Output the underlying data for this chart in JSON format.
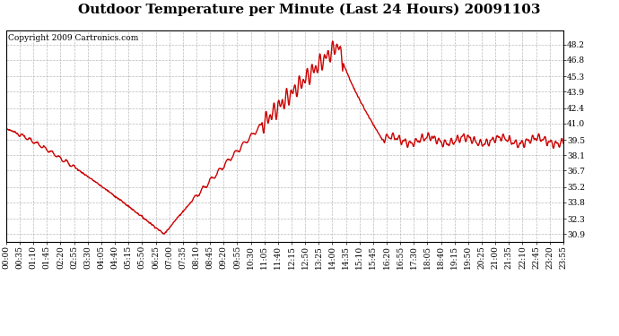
{
  "title": "Outdoor Temperature per Minute (Last 24 Hours) 20091103",
  "copyright_text": "Copyright 2009 Cartronics.com",
  "line_color": "#cc0000",
  "background_color": "#ffffff",
  "grid_color": "#aaaaaa",
  "y_ticks": [
    30.9,
    32.3,
    33.8,
    35.2,
    36.7,
    38.1,
    39.5,
    41.0,
    42.4,
    43.9,
    45.3,
    46.8,
    48.2
  ],
  "y_min": 30.2,
  "y_max": 49.5,
  "x_tick_labels": [
    "00:00",
    "00:35",
    "01:10",
    "01:45",
    "02:20",
    "02:55",
    "03:30",
    "04:05",
    "04:40",
    "05:15",
    "05:50",
    "06:25",
    "07:00",
    "07:35",
    "08:10",
    "08:45",
    "09:20",
    "09:55",
    "10:30",
    "11:05",
    "11:40",
    "12:15",
    "12:50",
    "13:25",
    "14:00",
    "14:35",
    "15:10",
    "15:45",
    "16:20",
    "16:55",
    "17:30",
    "18:05",
    "18:40",
    "19:15",
    "19:50",
    "20:25",
    "21:00",
    "21:35",
    "22:10",
    "22:45",
    "23:20",
    "23:55"
  ],
  "num_minutes": 1440,
  "line_width": 1.0,
  "title_fontsize": 11,
  "tick_fontsize": 6.5,
  "copyright_fontsize": 6.5
}
